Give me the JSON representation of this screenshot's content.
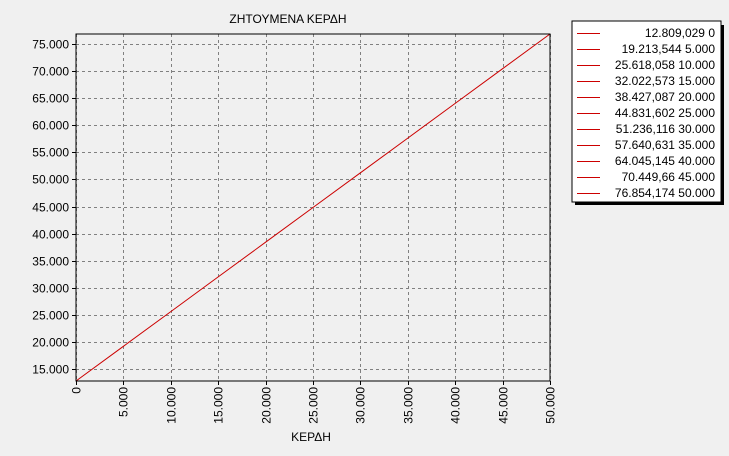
{
  "chart_data": {
    "type": "line",
    "title": "ΖΗΤΟΥΜΕΝΑ ΚΕΡΔΗ",
    "xlabel": "ΚΕΡΔΗ",
    "ylabel": "",
    "xlim": [
      0,
      50000
    ],
    "ylim": [
      12809.029,
      76854.174
    ],
    "x_ticks": [
      "0",
      "5.000",
      "10.000",
      "15.000",
      "20.000",
      "25.000",
      "30.000",
      "35.000",
      "40.000",
      "45.000",
      "50.000"
    ],
    "y_ticks": [
      "75.000",
      "70.000",
      "65.000",
      "60.000",
      "55.000",
      "50.000",
      "45.000",
      "40.000",
      "35.000",
      "30.000",
      "25.000",
      "20.000",
      "15.000"
    ],
    "grid": true,
    "legend_position": "right",
    "series": [
      {
        "color": "#cc0000",
        "x": [
          0,
          5000,
          10000,
          15000,
          20000,
          25000,
          30000,
          35000,
          40000,
          45000,
          50000
        ],
        "y": [
          12809.029,
          19213.544,
          25618.058,
          32022.573,
          38427.087,
          44831.602,
          51236.116,
          57640.631,
          64045.145,
          70449.66,
          76854.174
        ]
      }
    ],
    "legend_entries": [
      "12.809,029 0",
      "19.213,544 5.000",
      "25.618,058 10.000",
      "32.022,573 15.000",
      "38.427,087 20.000",
      "44.831,602 25.000",
      "51.236,116 30.000",
      "57.640,631 35.000",
      "64.045,145 40.000",
      " 70.449,66 45.000",
      "76.854,174 50.000"
    ],
    "colors": {
      "background": "#f0f0f0",
      "plot_background": "#f0f0f0",
      "grid": "#808080",
      "line": "#cc0000",
      "legend_background": "#ffffff"
    }
  }
}
